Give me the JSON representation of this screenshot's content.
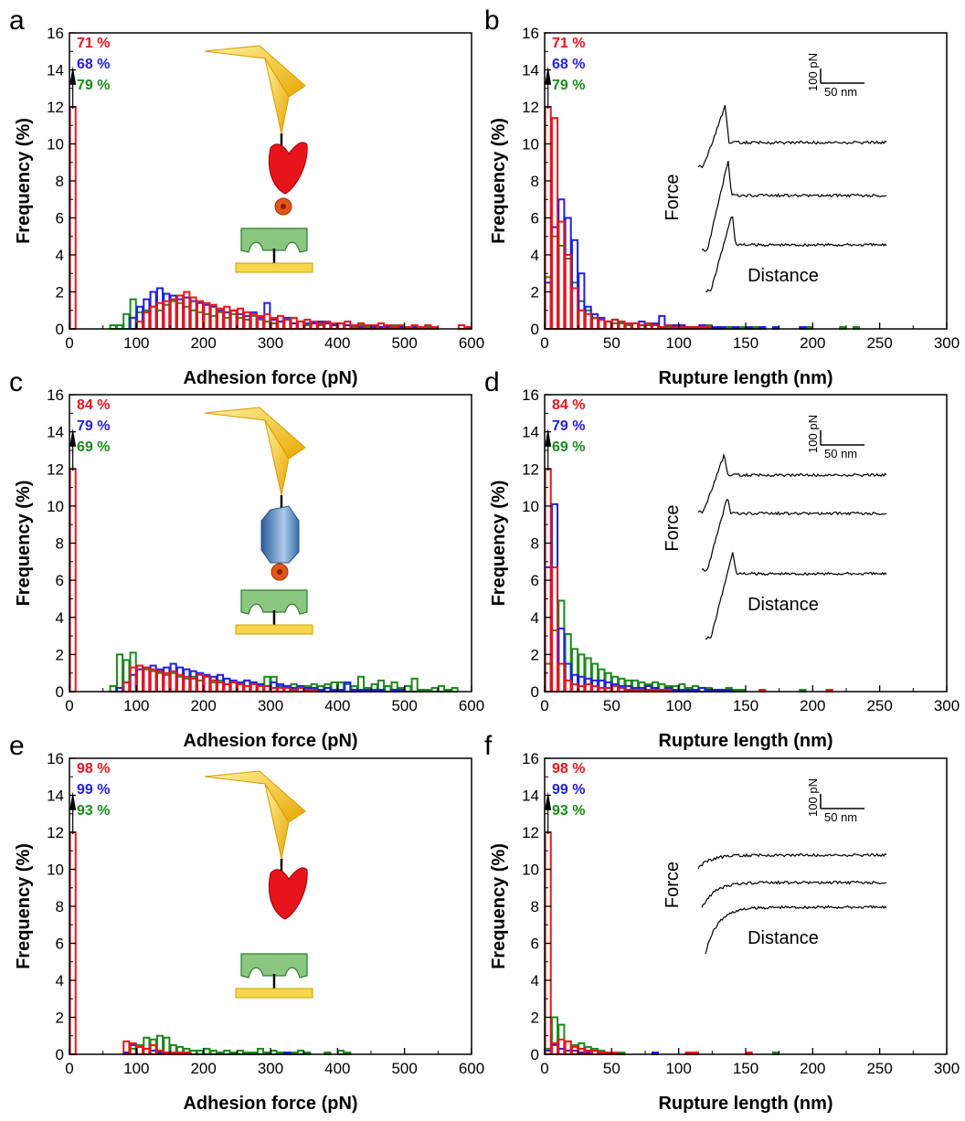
{
  "colors": {
    "red": "#e8141c",
    "blue": "#1f1fe0",
    "green": "#1a8a1a",
    "axis": "#000000"
  },
  "inset": {
    "force": "Force",
    "distance": "Distance",
    "scale_force": "100 pN",
    "scale_distance": "50 nm"
  },
  "chart_data": [
    {
      "id": "a",
      "type": "bar",
      "panel": "a",
      "xlabel": "Adhesion force (pN)",
      "ylabel": "Frequency (%)",
      "xlim": [
        0,
        600
      ],
      "ylim": [
        0,
        16
      ],
      "bin": 10,
      "xticks": [
        0,
        100,
        200,
        300,
        400,
        500,
        600
      ],
      "yticks": [
        0,
        2,
        4,
        6,
        8,
        10,
        12,
        14,
        16
      ],
      "zero_bin_percentages": [
        {
          "text": "71 %",
          "color": "red"
        },
        {
          "text": "68 %",
          "color": "blue"
        },
        {
          "text": "79 %",
          "color": "green"
        }
      ],
      "inset": "schematic",
      "series": [
        {
          "name": "green",
          "color": "green",
          "x0": 60,
          "values": [
            0.2,
            0.2,
            0.8,
            1.6,
            0.9,
            1.0,
            1.2,
            1.0,
            1.3,
            1.5,
            1.4,
            1.2,
            1.0,
            0.9,
            0.8,
            0.7,
            0.9,
            0.6,
            0.8,
            0.6,
            0.5,
            0.7,
            0.5,
            0.4,
            0.3,
            0.4,
            0.5,
            0.3,
            0.4,
            0.2,
            0.3,
            0.2,
            0.3,
            0.2,
            0.3,
            0.2,
            0.1,
            0.2,
            0.1,
            0.2,
            0.1,
            0.1,
            0.2,
            0.1,
            0,
            0.1,
            0,
            0.1,
            0.1
          ]
        },
        {
          "name": "blue",
          "color": "blue",
          "x0": 90,
          "values": [
            0.6,
            1.2,
            1.6,
            2.0,
            2.2,
            1.9,
            1.8,
            1.6,
            1.7,
            1.5,
            1.4,
            1.3,
            1.2,
            1.0,
            0.9,
            1.0,
            0.8,
            0.7,
            0.9,
            0.6,
            1.4,
            0.5,
            0.4,
            0.6,
            0.3,
            0.4,
            0.3,
            0.3,
            0.4,
            0.3,
            0.2,
            0.3,
            0.2,
            0.2,
            0.1,
            0.2,
            0.1,
            0.1,
            0.1,
            0,
            0.1,
            0,
            0.1
          ]
        },
        {
          "name": "red",
          "color": "red",
          "x0": 0,
          "values": [
            12,
            0,
            0,
            0,
            0,
            0,
            0,
            0,
            0,
            0,
            0.4,
            0.9,
            1.2,
            1.4,
            1.5,
            1.6,
            1.8,
            2.0,
            1.7,
            1.5,
            1.4,
            1.3,
            1.1,
            1.2,
            1.0,
            1.1,
            0.9,
            0.8,
            0.7,
            0.8,
            0.6,
            0.7,
            0.5,
            0.6,
            0.4,
            0.5,
            0.4,
            0.3,
            0.4,
            0.3,
            0.3,
            0.4,
            0.2,
            0.3,
            0.2,
            0.2,
            0.3,
            0.2,
            0.1,
            0.2,
            0.1,
            0.2,
            0.1,
            0.2,
            0.1,
            0,
            0,
            0,
            0.2,
            0.1
          ]
        }
      ]
    },
    {
      "id": "b",
      "type": "bar",
      "panel": "b",
      "xlabel": "Rupture length (nm)",
      "ylabel": "Frequency (%)",
      "xlim": [
        0,
        300
      ],
      "ylim": [
        0,
        16
      ],
      "bin": 5,
      "xticks": [
        0,
        50,
        100,
        150,
        200,
        250,
        300
      ],
      "yticks": [
        0,
        2,
        4,
        6,
        8,
        10,
        12,
        14,
        16
      ],
      "zero_bin_percentages": [
        {
          "text": "71 %",
          "color": "red"
        },
        {
          "text": "68 %",
          "color": "blue"
        },
        {
          "text": "79 %",
          "color": "green"
        }
      ],
      "inset": "curves_a",
      "series": [
        {
          "name": "green",
          "color": "green",
          "x0": 0,
          "values": [
            2.8,
            5.0,
            4.5,
            3.8,
            2.5,
            1.5,
            1.0,
            0.6,
            0.5,
            0.4,
            0.3,
            0.3,
            0.2,
            0.3,
            0.2,
            0.2,
            0.2,
            0.1,
            0.1,
            0.2,
            0.1,
            0.1,
            0.1,
            0.1,
            0.2,
            0.1,
            0,
            0.1,
            0,
            0.1,
            0,
            0.1,
            0,
            0,
            0.1,
            0,
            0,
            0,
            0,
            0.1,
            0,
            0,
            0,
            0,
            0.1,
            0,
            0.1
          ]
        },
        {
          "name": "blue",
          "color": "blue",
          "x0": 0,
          "values": [
            2.5,
            5.5,
            7.0,
            6.0,
            4.8,
            3.0,
            1.2,
            0.8,
            0.6,
            0.4,
            0.5,
            0.4,
            0.3,
            0.3,
            0.4,
            0.3,
            0.3,
            0.7,
            0.2,
            0.2,
            0.2,
            0.1,
            0.1,
            0.2,
            0.1,
            0.1,
            0.1,
            0,
            0.1,
            0,
            0.1,
            0,
            0.1,
            0,
            0.1,
            0,
            0,
            0,
            0.1
          ]
        },
        {
          "name": "red",
          "color": "red",
          "x0": 0,
          "values": [
            12,
            11.4,
            5.8,
            4.0,
            2.2,
            1.0,
            0.8,
            0.6,
            0.5,
            0.4,
            0.5,
            0.4,
            0.3,
            0.3,
            0.2,
            0.3,
            0.2,
            0.1,
            0.2,
            0.1,
            0.1,
            0.1,
            0.1,
            0.1,
            0.1
          ]
        }
      ]
    },
    {
      "id": "c",
      "type": "bar",
      "panel": "c",
      "xlabel": "Adhesion force (pN)",
      "ylabel": "Frequency (%)",
      "xlim": [
        0,
        600
      ],
      "ylim": [
        0,
        16
      ],
      "bin": 10,
      "xticks": [
        0,
        100,
        200,
        300,
        400,
        500,
        600
      ],
      "yticks": [
        0,
        2,
        4,
        6,
        8,
        10,
        12,
        14,
        16
      ],
      "zero_bin_percentages": [
        {
          "text": "84 %",
          "color": "red"
        },
        {
          "text": "79 %",
          "color": "blue"
        },
        {
          "text": "69 %",
          "color": "green"
        }
      ],
      "inset": "schematic2",
      "series": [
        {
          "name": "green",
          "color": "green",
          "x0": 60,
          "values": [
            0.3,
            2.0,
            1.7,
            2.1,
            1.4,
            1.2,
            1.1,
            1.0,
            0.9,
            1.0,
            0.8,
            0.7,
            0.8,
            0.6,
            0.9,
            0.5,
            0.6,
            0.4,
            0.5,
            0.4,
            0.6,
            0.5,
            0.4,
            0.8,
            0.8,
            0.3,
            0.3,
            0.4,
            0.2,
            0.3,
            0.4,
            0.3,
            0.4,
            0.5,
            0.5,
            0.4,
            0.3,
            0.8,
            0.2,
            0.4,
            0.6,
            0.3,
            0.5,
            0.2,
            0.3,
            0.7,
            0.1,
            0.1,
            0.2,
            0.3,
            0.1,
            0.2
          ]
        },
        {
          "name": "blue",
          "color": "blue",
          "x0": 70,
          "values": [
            0.2,
            0.5,
            0.9,
            1.2,
            1.3,
            1.4,
            1.2,
            1.3,
            1.5,
            1.3,
            1.2,
            1.1,
            1.0,
            0.9,
            0.8,
            0.9,
            0.7,
            0.6,
            0.5,
            0.6,
            0.5,
            0.4,
            0.3,
            0.5,
            0.4,
            0.3,
            0.2,
            0.3,
            0.2,
            0.2,
            0.1,
            0.2,
            0.1,
            0.1,
            0.5,
            0.1,
            0.1,
            0.1,
            0.1,
            0.1,
            0,
            0.1,
            0.1
          ]
        },
        {
          "name": "red",
          "color": "red",
          "x0": 0,
          "values": [
            12,
            0,
            0,
            0,
            0,
            0,
            0,
            0,
            0.5,
            1.3,
            1.4,
            1.3,
            1.2,
            1.1,
            1.0,
            1.1,
            0.9,
            0.8,
            0.7,
            0.9,
            0.8,
            0.6,
            0.5,
            0.4,
            0.5,
            0.4,
            0.3,
            0.4,
            0.3,
            0.3,
            0.2,
            0.2,
            0.2,
            0.1,
            0.2,
            0.1,
            0.1
          ]
        }
      ]
    },
    {
      "id": "d",
      "type": "bar",
      "panel": "d",
      "xlabel": "Rupture length (nm)",
      "ylabel": "Frequency (%)",
      "xlim": [
        0,
        300
      ],
      "ylim": [
        0,
        16
      ],
      "bin": 5,
      "xticks": [
        0,
        50,
        100,
        150,
        200,
        250,
        300
      ],
      "yticks": [
        0,
        2,
        4,
        6,
        8,
        10,
        12,
        14,
        16
      ],
      "zero_bin_percentages": [
        {
          "text": "84 %",
          "color": "red"
        },
        {
          "text": "79 %",
          "color": "blue"
        },
        {
          "text": "69 %",
          "color": "green"
        }
      ],
      "inset": "curves_b",
      "series": [
        {
          "name": "green",
          "color": "green",
          "x0": 0,
          "values": [
            1.5,
            3.3,
            4.9,
            3.1,
            2.3,
            2.0,
            1.8,
            1.5,
            1.2,
            1.0,
            0.8,
            0.7,
            0.6,
            0.6,
            0.5,
            0.4,
            0.5,
            0.4,
            0.3,
            0.3,
            0.4,
            0.2,
            0.3,
            0.2,
            0.2,
            0.1,
            0.1,
            0.2,
            0.1,
            0.1,
            0,
            0,
            0,
            0,
            0,
            0,
            0,
            0,
            0.1
          ]
        },
        {
          "name": "blue",
          "color": "blue",
          "x0": 0,
          "values": [
            6.7,
            10.1,
            3.4,
            1.5,
            0.9,
            0.8,
            0.7,
            0.6,
            0.6,
            0.5,
            0.4,
            0.3,
            0.3,
            0.2,
            0.2,
            0.3,
            0.2,
            0.1,
            0.2,
            0.1,
            0.1,
            0.1,
            0.1,
            0.2,
            0.1,
            0.1,
            0.1,
            0.1
          ]
        },
        {
          "name": "red",
          "color": "red",
          "x0": 0,
          "values": [
            12,
            6.7,
            1.5,
            0.6,
            0.4,
            0.3,
            0.4,
            0.3,
            0.2,
            0.2,
            0.3,
            0.2,
            0.1,
            0.1,
            0.1,
            0.1,
            0.1,
            0.1,
            0.1,
            0,
            0,
            0,
            0,
            0,
            0,
            0,
            0,
            0,
            0,
            0,
            0,
            0,
            0.1,
            0,
            0,
            0,
            0,
            0,
            0,
            0,
            0,
            0,
            0.1
          ]
        }
      ]
    },
    {
      "id": "e",
      "type": "bar",
      "panel": "e",
      "xlabel": "Adhesion force (pN)",
      "ylabel": "Frequency (%)",
      "xlim": [
        0,
        600
      ],
      "ylim": [
        0,
        16
      ],
      "bin": 10,
      "xticks": [
        0,
        100,
        200,
        300,
        400,
        500,
        600
      ],
      "yticks": [
        0,
        2,
        4,
        6,
        8,
        10,
        12,
        14,
        16
      ],
      "zero_bin_percentages": [
        {
          "text": "98 %",
          "color": "red"
        },
        {
          "text": "99 %",
          "color": "blue"
        },
        {
          "text": "93 %",
          "color": "green"
        }
      ],
      "inset": "schematic3",
      "series": [
        {
          "name": "green",
          "color": "green",
          "x0": 90,
          "values": [
            0.3,
            0.5,
            0.9,
            0.8,
            1.0,
            0.9,
            0.5,
            0.4,
            0.3,
            0.2,
            0.2,
            0.3,
            0.2,
            0.1,
            0.2,
            0.1,
            0.2,
            0.1,
            0.1,
            0.3,
            0.1,
            0.2,
            0.1,
            0.1,
            0.1,
            0.2,
            0.1,
            0,
            0,
            0.1,
            0,
            0.2,
            0.1
          ]
        },
        {
          "name": "blue",
          "color": "blue",
          "x0": 80,
          "values": [
            0.1,
            0.5,
            0.4,
            0.3,
            0.2,
            0.1,
            0.1,
            0,
            0.1,
            0,
            0,
            0,
            0,
            0,
            0,
            0,
            0,
            0,
            0,
            0,
            0,
            0,
            0,
            0,
            0.1
          ]
        },
        {
          "name": "red",
          "color": "red",
          "x0": 0,
          "values": [
            12,
            0,
            0,
            0,
            0,
            0,
            0,
            0,
            0.7,
            0.6,
            0.4,
            0.3,
            0.5,
            0.2,
            0.1,
            0.1,
            0.1,
            0.1
          ]
        }
      ]
    },
    {
      "id": "f",
      "type": "bar",
      "panel": "f",
      "xlabel": "Rupture length (nm)",
      "ylabel": "Frequency (%)",
      "xlim": [
        0,
        300
      ],
      "ylim": [
        0,
        16
      ],
      "bin": 5,
      "xticks": [
        0,
        50,
        100,
        150,
        200,
        250,
        300
      ],
      "yticks": [
        0,
        2,
        4,
        6,
        8,
        10,
        12,
        14,
        16
      ],
      "zero_bin_percentages": [
        {
          "text": "98 %",
          "color": "red"
        },
        {
          "text": "99 %",
          "color": "blue"
        },
        {
          "text": "93 %",
          "color": "green"
        }
      ],
      "inset": "curves_c",
      "series": [
        {
          "name": "green",
          "color": "green",
          "x0": 0,
          "values": [
            0.3,
            2.0,
            1.6,
            0.7,
            0.5,
            0.6,
            0.4,
            0.3,
            0.2,
            0.1,
            0.1,
            0.1,
            0,
            0,
            0,
            0,
            0,
            0,
            0,
            0,
            0,
            0,
            0,
            0,
            0,
            0,
            0,
            0,
            0,
            0,
            0,
            0,
            0,
            0,
            0.1
          ]
        },
        {
          "name": "blue",
          "color": "blue",
          "x0": 0,
          "values": [
            0.2,
            0.5,
            0.3,
            0.2,
            0.2,
            0.1,
            0.1,
            0,
            0.1,
            0,
            0,
            0,
            0,
            0,
            0,
            0,
            0.1
          ]
        },
        {
          "name": "red",
          "color": "red",
          "x0": 0,
          "values": [
            12,
            0.6,
            0.8,
            0.7,
            0.4,
            0.3,
            0.2,
            0.2,
            0.1,
            0.1,
            0.1,
            0,
            0,
            0,
            0,
            0,
            0,
            0,
            0,
            0,
            0,
            0.1,
            0.1,
            0,
            0,
            0,
            0,
            0,
            0,
            0,
            0.1
          ]
        }
      ]
    }
  ]
}
